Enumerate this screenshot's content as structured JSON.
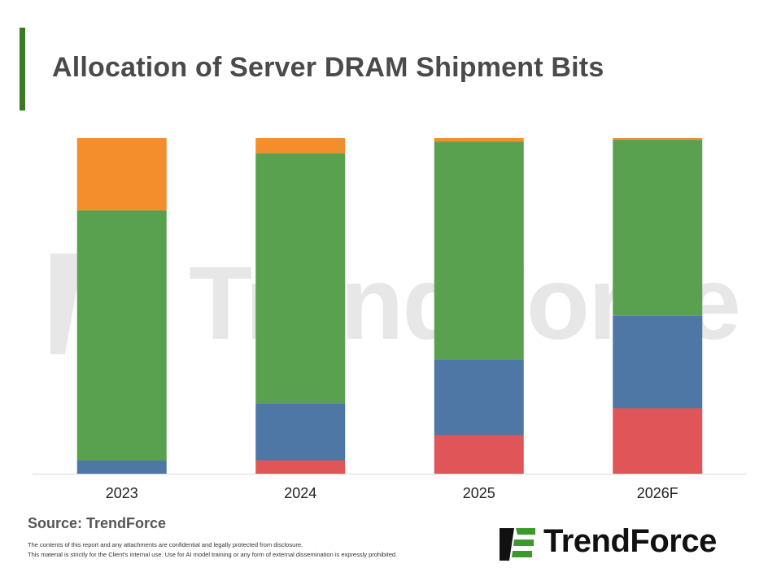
{
  "title": "Allocation of Server DRAM Shipment Bits",
  "accent_color": "#3a7a22",
  "watermark_text": "TrendForce",
  "source": "Source: TrendForce",
  "disclaimer": [
    "The contents of this report and any attachments are confidential and legally protected from disclosure.",
    "This material is strictly for the Client's internal use. Use for AI model training or any form of external dissemination is expressly prohibited."
  ],
  "logo": {
    "brand": "TrendForce",
    "icon": "trendforce-logo-icon",
    "icon_color": "#3c9a2c"
  },
  "chart_data": {
    "type": "bar",
    "stacked": true,
    "percent": true,
    "categories": [
      "2023",
      "2024",
      "2025",
      "2026F"
    ],
    "series": [
      {
        "color": "#e05558",
        "values": [
          0,
          4,
          11.5,
          19.5
        ]
      },
      {
        "color": "#4e77a6",
        "values": [
          4,
          17,
          22.5,
          27.5
        ]
      },
      {
        "color": "#59a14f",
        "values": [
          74.5,
          74.5,
          65,
          52.5
        ]
      },
      {
        "color": "#f28e2c",
        "values": [
          21.5,
          4.5,
          1,
          0.5
        ]
      }
    ],
    "ylim": [
      0,
      100
    ],
    "legend": "none",
    "grid": false
  }
}
